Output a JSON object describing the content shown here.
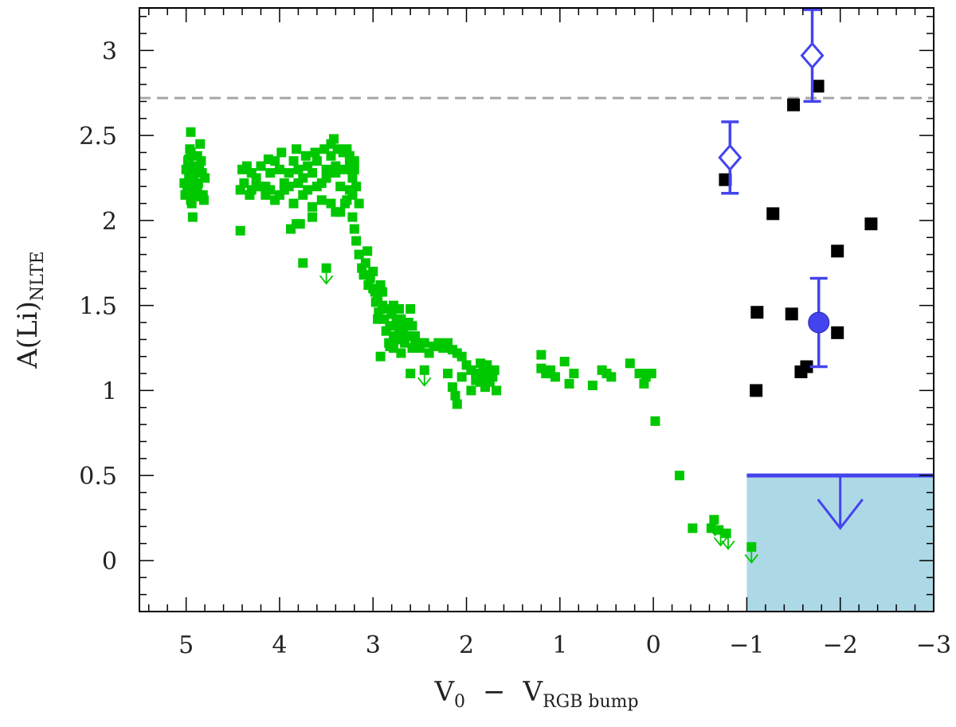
{
  "chart_data": {
    "type": "scatter",
    "title": "",
    "xlabel": {
      "main": "V",
      "sub1": "0",
      "minus": "−",
      "main2": "V",
      "sub2": "RGB bump"
    },
    "ylabel": {
      "main": "A(Li)",
      "sub": "NLTE"
    },
    "xlim": [
      5.5,
      -3.0
    ],
    "ylim": [
      -0.3,
      3.25
    ],
    "x_reversed": true,
    "x_ticks": [
      {
        "value": 5,
        "label": "5"
      },
      {
        "value": 4,
        "label": "4"
      },
      {
        "value": 3,
        "label": "3"
      },
      {
        "value": 2,
        "label": "2"
      },
      {
        "value": 1,
        "label": "1"
      },
      {
        "value": 0,
        "label": "0"
      },
      {
        "value": -1,
        "label": "−1"
      },
      {
        "value": -2,
        "label": "−2"
      },
      {
        "value": -3,
        "label": "−3"
      }
    ],
    "y_ticks": [
      {
        "value": 0,
        "label": "0"
      },
      {
        "value": 0.5,
        "label": "0.5"
      },
      {
        "value": 1,
        "label": "1"
      },
      {
        "value": 1.5,
        "label": "1.5"
      },
      {
        "value": 2,
        "label": "2"
      },
      {
        "value": 2.5,
        "label": "2.5"
      },
      {
        "value": 3,
        "label": "3"
      }
    ],
    "reference_line": {
      "y": 2.72,
      "style": "dashed",
      "color": "#a6a6a6"
    },
    "upper_limit_region": {
      "x_from": -1.0,
      "x_to": -3.0,
      "y_top": 0.5,
      "arrow_x": -2.0,
      "fill": "#add8e6",
      "line_color": "#4444ee"
    },
    "colors": {
      "green": "#00c800",
      "black": "#000000",
      "blue": "#4444ee"
    },
    "series": [
      {
        "marker": "square",
        "color": "#00c800",
        "points": [
          [
            4.95,
            2.52
          ],
          [
            4.95,
            2.4
          ],
          [
            4.93,
            2.3
          ],
          [
            4.97,
            2.25
          ],
          [
            4.92,
            2.2
          ],
          [
            4.96,
            2.15
          ],
          [
            4.94,
            2.1
          ],
          [
            4.98,
            2.35
          ],
          [
            4.91,
            2.28
          ],
          [
            4.99,
            2.18
          ],
          [
            4.93,
            2.02
          ],
          [
            4.96,
            2.42
          ],
          [
            4.95,
            2.12
          ],
          [
            4.88,
            2.38
          ],
          [
            4.85,
            2.45
          ],
          [
            4.9,
            2.32
          ],
          [
            4.87,
            2.22
          ],
          [
            4.83,
            2.28
          ],
          [
            4.82,
            2.15
          ],
          [
            4.86,
            2.3
          ],
          [
            4.8,
            2.25
          ],
          [
            4.84,
            2.35
          ],
          [
            4.88,
            2.18
          ],
          [
            4.81,
            2.12
          ],
          [
            5.0,
            2.3
          ],
          [
            5.02,
            2.22
          ],
          [
            5.01,
            2.15
          ],
          [
            4.97,
            2.36
          ],
          [
            4.92,
            2.26
          ],
          [
            4.89,
            2.14
          ],
          [
            4.4,
            2.3
          ],
          [
            4.35,
            2.32
          ],
          [
            4.38,
            2.22
          ],
          [
            4.42,
            2.18
          ],
          [
            4.3,
            2.28
          ],
          [
            4.25,
            2.25
          ],
          [
            4.2,
            2.32
          ],
          [
            4.15,
            2.2
          ],
          [
            4.1,
            2.28
          ],
          [
            4.05,
            2.35
          ],
          [
            4.0,
            2.3
          ],
          [
            3.95,
            2.22
          ],
          [
            3.9,
            2.28
          ],
          [
            3.85,
            2.35
          ],
          [
            3.8,
            2.3
          ],
          [
            3.75,
            2.25
          ],
          [
            3.7,
            2.32
          ],
          [
            3.65,
            2.28
          ],
          [
            3.6,
            2.35
          ],
          [
            3.55,
            2.22
          ],
          [
            3.5,
            2.3
          ],
          [
            3.45,
            2.38
          ],
          [
            3.4,
            2.32
          ],
          [
            4.3,
            2.18
          ],
          [
            4.2,
            2.2
          ],
          [
            4.1,
            2.18
          ],
          [
            4.0,
            2.15
          ],
          [
            3.9,
            2.2
          ],
          [
            3.8,
            2.22
          ],
          [
            3.7,
            2.18
          ],
          [
            3.6,
            2.2
          ],
          [
            3.5,
            2.25
          ],
          [
            3.4,
            2.28
          ],
          [
            3.35,
            2.2
          ],
          [
            3.3,
            2.3
          ],
          [
            3.25,
            2.35
          ],
          [
            3.22,
            2.25
          ],
          [
            3.2,
            2.3
          ],
          [
            4.12,
            2.36
          ],
          [
            3.98,
            2.4
          ],
          [
            3.82,
            2.42
          ],
          [
            3.72,
            2.38
          ],
          [
            3.62,
            2.4
          ],
          [
            3.52,
            2.42
          ],
          [
            3.45,
            2.45
          ],
          [
            3.42,
            2.48
          ],
          [
            3.38,
            2.42
          ],
          [
            3.32,
            2.4
          ],
          [
            3.28,
            2.42
          ],
          [
            3.25,
            2.38
          ],
          [
            3.2,
            2.35
          ],
          [
            3.45,
            2.1
          ],
          [
            3.55,
            2.12
          ],
          [
            3.65,
            2.08
          ],
          [
            3.75,
            2.15
          ],
          [
            3.85,
            2.1
          ],
          [
            3.95,
            2.18
          ],
          [
            4.05,
            2.12
          ],
          [
            4.15,
            2.15
          ],
          [
            4.25,
            2.2
          ],
          [
            4.32,
            2.15
          ],
          [
            3.78,
            1.98
          ],
          [
            3.65,
            2.02
          ],
          [
            3.4,
            2.05
          ],
          [
            3.3,
            2.1
          ],
          [
            3.35,
            2.05
          ],
          [
            3.28,
            2.12
          ],
          [
            3.22,
            2.15
          ],
          [
            3.18,
            2.2
          ],
          [
            3.15,
            2.1
          ],
          [
            3.25,
            2.18
          ],
          [
            4.42,
            1.94
          ],
          [
            3.88,
            1.95
          ],
          [
            3.82,
            1.98
          ],
          [
            3.75,
            1.75
          ],
          [
            3.5,
            1.72
          ],
          [
            3.22,
            2.02
          ],
          [
            3.2,
            1.95
          ],
          [
            3.18,
            1.88
          ],
          [
            3.15,
            1.8
          ],
          [
            3.12,
            1.72
          ],
          [
            3.1,
            1.68
          ],
          [
            3.08,
            1.75
          ],
          [
            3.05,
            1.62
          ],
          [
            3.0,
            1.7
          ],
          [
            2.98,
            1.58
          ],
          [
            2.95,
            1.55
          ],
          [
            2.92,
            1.62
          ],
          [
            2.9,
            1.5
          ],
          [
            2.88,
            1.42
          ],
          [
            2.85,
            1.48
          ],
          [
            2.82,
            1.38
          ],
          [
            2.8,
            1.45
          ],
          [
            2.78,
            1.32
          ],
          [
            2.75,
            1.4
          ],
          [
            2.72,
            1.35
          ],
          [
            2.7,
            1.42
          ],
          [
            2.68,
            1.3
          ],
          [
            2.65,
            1.38
          ],
          [
            2.6,
            1.48
          ],
          [
            2.55,
            1.32
          ],
          [
            2.5,
            1.28
          ],
          [
            3.06,
            1.82
          ],
          [
            3.03,
            1.66
          ],
          [
            3.0,
            1.6
          ],
          [
            2.97,
            1.52
          ],
          [
            2.94,
            1.46
          ],
          [
            2.9,
            1.58
          ],
          [
            2.86,
            1.35
          ],
          [
            2.83,
            1.28
          ],
          [
            2.78,
            1.25
          ],
          [
            2.74,
            1.3
          ],
          [
            2.7,
            1.22
          ],
          [
            2.66,
            1.28
          ],
          [
            2.62,
            1.4
          ],
          [
            2.58,
            1.25
          ],
          [
            2.55,
            1.3
          ],
          [
            2.95,
            1.42
          ],
          [
            2.92,
            1.2
          ],
          [
            2.82,
            1.26
          ],
          [
            2.78,
            1.5
          ],
          [
            2.72,
            1.48
          ],
          [
            2.68,
            1.36
          ],
          [
            2.62,
            1.32
          ],
          [
            2.58,
            1.38
          ],
          [
            2.8,
            1.48
          ],
          [
            2.5,
            1.25
          ],
          [
            2.45,
            1.28
          ],
          [
            2.4,
            1.22
          ],
          [
            2.35,
            1.26
          ],
          [
            2.3,
            1.28
          ],
          [
            2.25,
            1.25
          ],
          [
            2.2,
            1.28
          ],
          [
            2.15,
            1.24
          ],
          [
            2.1,
            1.22
          ],
          [
            2.05,
            1.2
          ],
          [
            2.45,
            1.12
          ],
          [
            2.6,
            1.1
          ],
          [
            2.2,
            1.1
          ],
          [
            2.15,
            1.02
          ],
          [
            2.12,
            0.97
          ],
          [
            2.1,
            0.92
          ],
          [
            2.05,
            1.08
          ],
          [
            2.0,
            1.15
          ],
          [
            1.95,
            1.12
          ],
          [
            1.9,
            1.1
          ],
          [
            1.85,
            1.16
          ],
          [
            1.82,
            1.12
          ],
          [
            1.8,
            1.08
          ],
          [
            1.78,
            1.15
          ],
          [
            1.75,
            1.1
          ],
          [
            1.72,
            1.08
          ],
          [
            1.7,
            1.12
          ],
          [
            1.85,
            1.05
          ],
          [
            1.8,
            1.02
          ],
          [
            1.9,
            1.06
          ],
          [
            1.68,
            1.0
          ],
          [
            1.95,
            1.0
          ],
          [
            1.75,
            1.05
          ],
          [
            1.2,
            1.21
          ],
          [
            1.15,
            1.1
          ],
          [
            1.1,
            1.12
          ],
          [
            1.05,
            1.08
          ],
          [
            1.2,
            1.13
          ],
          [
            0.95,
            1.17
          ],
          [
            0.9,
            1.04
          ],
          [
            0.85,
            1.1
          ],
          [
            0.65,
            1.03
          ],
          [
            0.55,
            1.12
          ],
          [
            0.5,
            1.1
          ],
          [
            0.45,
            1.08
          ],
          [
            0.25,
            1.16
          ],
          [
            0.15,
            1.1
          ],
          [
            0.1,
            1.04
          ],
          [
            0.08,
            1.08
          ],
          [
            0.05,
            1.1
          ],
          [
            0.02,
            1.1
          ],
          [
            -0.02,
            0.82
          ],
          [
            -0.28,
            0.5
          ],
          [
            -0.42,
            0.19
          ],
          [
            -0.62,
            0.19
          ],
          [
            -0.65,
            0.24
          ],
          [
            -0.7,
            0.18
          ],
          [
            -0.78,
            0.16
          ],
          [
            -1.05,
            0.08
          ]
        ]
      },
      {
        "marker": "arrow-down",
        "color": "#00c800",
        "points": [
          [
            3.5,
            1.68
          ],
          [
            2.45,
            1.08
          ],
          [
            -0.66,
            0.2
          ],
          [
            -0.72,
            0.14
          ],
          [
            -0.8,
            0.12
          ],
          [
            -1.05,
            0.04
          ]
        ]
      },
      {
        "marker": "square",
        "color": "#000000",
        "points": [
          [
            -1.76,
            2.79
          ],
          [
            -1.5,
            2.68
          ],
          [
            -0.77,
            2.24
          ],
          [
            -1.28,
            2.04
          ],
          [
            -2.33,
            1.98
          ],
          [
            -1.97,
            1.82
          ],
          [
            -1.11,
            1.46
          ],
          [
            -1.48,
            1.45
          ],
          [
            -1.97,
            1.34
          ],
          [
            -1.58,
            1.11
          ],
          [
            -1.64,
            1.14
          ],
          [
            -1.1,
            1.0
          ]
        ]
      },
      {
        "marker": "diamond-open",
        "color": "#4444ee",
        "points": [
          [
            -1.7,
            2.97
          ],
          [
            -0.82,
            2.37
          ]
        ],
        "errors": [
          [
            0.27,
            0.27
          ],
          [
            0.21,
            0.21
          ]
        ]
      },
      {
        "marker": "circle-filled",
        "color": "#4444ee",
        "points": [
          [
            -1.77,
            1.4
          ]
        ],
        "errors": [
          [
            0.26,
            0.26
          ]
        ]
      }
    ]
  }
}
